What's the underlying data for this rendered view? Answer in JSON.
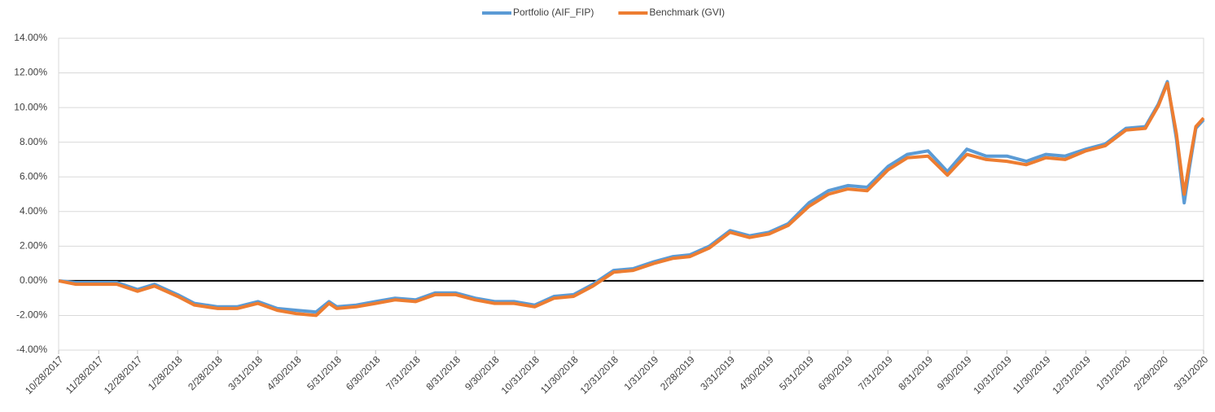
{
  "chart_data": {
    "type": "line",
    "x": [
      "10/28/2017",
      "11/10/2017",
      "11/28/2017",
      "12/12/2017",
      "12/28/2017",
      "1/10/2018",
      "1/28/2018",
      "2/10/2018",
      "2/28/2018",
      "3/15/2018",
      "3/31/2018",
      "4/15/2018",
      "4/30/2018",
      "5/15/2018",
      "5/25/2018",
      "5/31/2018",
      "6/15/2018",
      "6/30/2018",
      "7/15/2018",
      "7/31/2018",
      "8/15/2018",
      "8/31/2018",
      "9/15/2018",
      "9/30/2018",
      "10/15/2018",
      "10/31/2018",
      "11/15/2018",
      "11/30/2018",
      "12/15/2018",
      "12/31/2018",
      "1/15/2019",
      "1/31/2019",
      "2/15/2019",
      "2/28/2019",
      "3/15/2019",
      "3/31/2019",
      "4/15/2019",
      "4/30/2019",
      "5/15/2019",
      "5/31/2019",
      "6/15/2019",
      "6/30/2019",
      "7/15/2019",
      "7/31/2019",
      "8/15/2019",
      "8/31/2019",
      "9/15/2019",
      "9/30/2019",
      "10/15/2019",
      "10/31/2019",
      "11/15/2019",
      "11/30/2019",
      "12/15/2019",
      "12/31/2019",
      "1/15/2020",
      "1/31/2020",
      "2/15/2020",
      "2/25/2020",
      "3/3/2020",
      "3/10/2020",
      "3/16/2020",
      "3/20/2020",
      "3/25/2020",
      "3/31/2020"
    ],
    "series": [
      {
        "name": "Portfolio (AIF_FIP)",
        "color": "#5b9bd5",
        "values": [
          0.0,
          -0.1,
          -0.1,
          -0.1,
          -0.5,
          -0.2,
          -0.8,
          -1.3,
          -1.5,
          -1.5,
          -1.2,
          -1.6,
          -1.7,
          -1.8,
          -1.2,
          -1.5,
          -1.4,
          -1.2,
          -1.0,
          -1.1,
          -0.7,
          -0.7,
          -1.0,
          -1.2,
          -1.2,
          -1.4,
          -0.9,
          -0.8,
          -0.2,
          0.6,
          0.7,
          1.1,
          1.4,
          1.5,
          2.0,
          2.9,
          2.6,
          2.8,
          3.3,
          4.5,
          5.2,
          5.5,
          5.4,
          6.6,
          7.3,
          7.5,
          6.3,
          7.6,
          7.2,
          7.2,
          6.9,
          7.3,
          7.2,
          7.6,
          7.9,
          8.8,
          8.9,
          10.2,
          11.5,
          8.2,
          4.5,
          6.5,
          8.8,
          9.3
        ]
      },
      {
        "name": "Benchmark (GVI)",
        "color": "#ed7d31",
        "values": [
          0.0,
          -0.2,
          -0.2,
          -0.2,
          -0.6,
          -0.3,
          -0.9,
          -1.4,
          -1.6,
          -1.6,
          -1.3,
          -1.7,
          -1.9,
          -2.0,
          -1.3,
          -1.6,
          -1.5,
          -1.3,
          -1.1,
          -1.2,
          -0.8,
          -0.8,
          -1.1,
          -1.3,
          -1.3,
          -1.5,
          -1.0,
          -0.9,
          -0.3,
          0.5,
          0.6,
          1.0,
          1.3,
          1.4,
          1.9,
          2.8,
          2.5,
          2.7,
          3.2,
          4.3,
          5.0,
          5.3,
          5.2,
          6.4,
          7.1,
          7.2,
          6.1,
          7.3,
          7.0,
          6.9,
          6.7,
          7.1,
          7.0,
          7.5,
          7.8,
          8.7,
          8.8,
          10.1,
          11.4,
          8.5,
          5.0,
          6.8,
          8.9,
          9.4
        ]
      }
    ],
    "xlim": [
      "10/28/2017",
      "3/31/2020"
    ],
    "xticks": [
      "10/28/2017",
      "11/28/2017",
      "12/28/2017",
      "1/28/2018",
      "2/28/2018",
      "3/31/2018",
      "4/30/2018",
      "5/31/2018",
      "6/30/2018",
      "7/31/2018",
      "8/31/2018",
      "9/30/2018",
      "10/31/2018",
      "11/30/2018",
      "12/31/2018",
      "1/31/2019",
      "2/28/2019",
      "3/31/2019",
      "4/30/2019",
      "5/31/2019",
      "6/30/2019",
      "7/31/2019",
      "8/31/2019",
      "9/30/2019",
      "10/31/2019",
      "11/30/2019",
      "12/31/2019",
      "1/31/2020",
      "2/29/2020",
      "3/31/2020"
    ],
    "ylim": [
      -4,
      14
    ],
    "yticks": [
      {
        "value": -4,
        "label": "-4.00%"
      },
      {
        "value": -2,
        "label": "-2.00%"
      },
      {
        "value": 0,
        "label": "0.00%"
      },
      {
        "value": 2,
        "label": "2.00%"
      },
      {
        "value": 4,
        "label": "4.00%"
      },
      {
        "value": 6,
        "label": "6.00%"
      },
      {
        "value": 8,
        "label": "8.00%"
      },
      {
        "value": 10,
        "label": "10.00%"
      },
      {
        "value": 12,
        "label": "12.00%"
      },
      {
        "value": 14,
        "label": "14.00%"
      }
    ],
    "grid": true,
    "legend": "top"
  }
}
